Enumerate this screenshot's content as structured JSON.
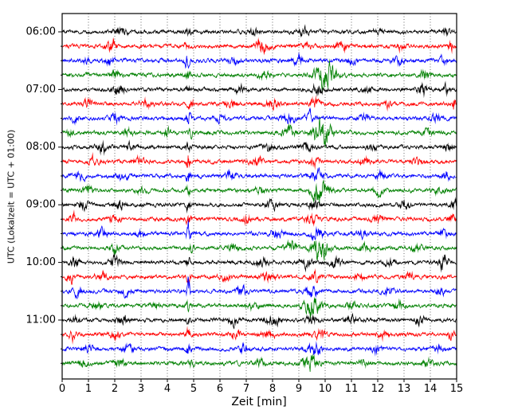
{
  "chart_data": {
    "type": "line",
    "subtype": "seismogram-helicorder",
    "title": "",
    "xlabel": "Zeit  [min]",
    "ylabel": "UTC (Lokalzeit = UTC + 01:00)",
    "x_range": [
      0,
      15
    ],
    "x_ticks": [
      0,
      1,
      2,
      3,
      4,
      5,
      6,
      7,
      8,
      9,
      10,
      11,
      12,
      13,
      14,
      15
    ],
    "minutes_per_row": 15,
    "y_hour_labels": [
      "06:00",
      "07:00",
      "08:00",
      "09:00",
      "10:00",
      "11:00"
    ],
    "trace_colors_cycle": [
      "#000000",
      "#ff0000",
      "#0000ff",
      "#008000"
    ],
    "grid": "vertical-dotted-per-minute",
    "rows": [
      {
        "time": "06:00",
        "color": "#000000",
        "seed": 11,
        "base_amp": 1.0,
        "events": [
          [
            2.2,
            2.0,
            0.25
          ],
          [
            4.8,
            1.8,
            0.12
          ],
          [
            7.3,
            1.2,
            0.2
          ],
          [
            9.2,
            1.8,
            0.2
          ],
          [
            12.0,
            1.0,
            0.2
          ],
          [
            14.6,
            1.5,
            0.15
          ]
        ]
      },
      {
        "time": "06:15",
        "color": "#ff0000",
        "seed": 12,
        "base_amp": 1.0,
        "events": [
          [
            1.9,
            3.0,
            0.2
          ],
          [
            4.7,
            1.5,
            0.1
          ],
          [
            7.6,
            2.8,
            0.25
          ],
          [
            9.3,
            1.5,
            0.2
          ],
          [
            10.6,
            2.5,
            0.2
          ],
          [
            12.9,
            1.8,
            0.15
          ],
          [
            14.8,
            2.2,
            0.12
          ]
        ]
      },
      {
        "time": "06:30",
        "color": "#0000ff",
        "seed": 13,
        "base_amp": 1.0,
        "events": [
          [
            0.9,
            1.5,
            0.15
          ],
          [
            1.8,
            2.0,
            0.2
          ],
          [
            4.75,
            3.5,
            0.08
          ],
          [
            6.5,
            1.8,
            0.2
          ],
          [
            9.0,
            2.0,
            0.25
          ],
          [
            11.0,
            1.2,
            0.2
          ],
          [
            12.8,
            1.8,
            0.2
          ],
          [
            14.5,
            1.5,
            0.15
          ]
        ]
      },
      {
        "time": "06:45",
        "color": "#008000",
        "seed": 14,
        "base_amp": 1.0,
        "events": [
          [
            2.0,
            1.8,
            0.2
          ],
          [
            4.8,
            2.0,
            0.1
          ],
          [
            7.7,
            1.8,
            0.2
          ],
          [
            9.9,
            6.5,
            0.3
          ],
          [
            10.3,
            3.0,
            0.2
          ],
          [
            13.8,
            1.8,
            0.2
          ]
        ]
      },
      {
        "time": "07:00",
        "color": "#000000",
        "seed": 15,
        "base_amp": 1.0,
        "events": [
          [
            2.15,
            3.5,
            0.18
          ],
          [
            4.8,
            2.0,
            0.1
          ],
          [
            6.8,
            1.8,
            0.2
          ],
          [
            9.7,
            2.5,
            0.2
          ],
          [
            11.6,
            1.5,
            0.2
          ],
          [
            13.7,
            2.8,
            0.2
          ],
          [
            14.6,
            2.0,
            0.15
          ]
        ]
      },
      {
        "time": "07:15",
        "color": "#ff0000",
        "seed": 16,
        "base_amp": 1.0,
        "events": [
          [
            1.0,
            2.0,
            0.2
          ],
          [
            3.2,
            1.8,
            0.2
          ],
          [
            4.9,
            3.0,
            0.1
          ],
          [
            6.4,
            1.5,
            0.2
          ],
          [
            8.0,
            2.0,
            0.25
          ],
          [
            9.6,
            2.0,
            0.2
          ],
          [
            12.4,
            1.5,
            0.2
          ],
          [
            14.9,
            2.6,
            0.1
          ]
        ]
      },
      {
        "time": "07:30",
        "color": "#0000ff",
        "seed": 17,
        "base_amp": 1.0,
        "events": [
          [
            0.5,
            1.8,
            0.15
          ],
          [
            2.0,
            1.8,
            0.2
          ],
          [
            4.8,
            4.0,
            0.08
          ],
          [
            6.0,
            1.5,
            0.2
          ],
          [
            8.6,
            2.0,
            0.25
          ],
          [
            9.4,
            2.2,
            0.2
          ],
          [
            11.5,
            1.5,
            0.2
          ],
          [
            14.2,
            1.8,
            0.2
          ]
        ]
      },
      {
        "time": "07:45",
        "color": "#008000",
        "seed": 18,
        "base_amp": 1.0,
        "events": [
          [
            0.3,
            1.5,
            0.15
          ],
          [
            2.5,
            1.5,
            0.2
          ],
          [
            4.0,
            1.8,
            0.15
          ],
          [
            4.9,
            2.2,
            0.1
          ],
          [
            8.6,
            2.5,
            0.25
          ],
          [
            9.9,
            7.0,
            0.35
          ],
          [
            13.9,
            1.8,
            0.2
          ]
        ]
      },
      {
        "time": "08:00",
        "color": "#000000",
        "seed": 19,
        "base_amp": 1.0,
        "events": [
          [
            1.5,
            3.0,
            0.2
          ],
          [
            2.6,
            2.0,
            0.2
          ],
          [
            4.8,
            2.0,
            0.1
          ],
          [
            7.8,
            1.8,
            0.25
          ],
          [
            9.3,
            2.0,
            0.2
          ],
          [
            11.8,
            1.5,
            0.2
          ],
          [
            14.7,
            2.8,
            0.15
          ]
        ]
      },
      {
        "time": "08:15",
        "color": "#ff0000",
        "seed": 20,
        "base_amp": 1.0,
        "events": [
          [
            1.2,
            2.0,
            0.2
          ],
          [
            2.9,
            1.5,
            0.2
          ],
          [
            4.8,
            5.0,
            0.07
          ],
          [
            7.4,
            1.5,
            0.25
          ],
          [
            9.6,
            2.0,
            0.2
          ],
          [
            11.5,
            1.8,
            0.2
          ],
          [
            13.5,
            1.5,
            0.2
          ]
        ]
      },
      {
        "time": "08:30",
        "color": "#0000ff",
        "seed": 21,
        "base_amp": 1.0,
        "events": [
          [
            0.7,
            1.5,
            0.2
          ],
          [
            2.3,
            2.0,
            0.2
          ],
          [
            4.8,
            5.5,
            0.07
          ],
          [
            6.4,
            1.8,
            0.2
          ],
          [
            9.7,
            2.8,
            0.25
          ],
          [
            12.1,
            1.8,
            0.2
          ],
          [
            14.6,
            2.5,
            0.15
          ]
        ]
      },
      {
        "time": "08:45",
        "color": "#008000",
        "seed": 22,
        "base_amp": 1.0,
        "events": [
          [
            1.0,
            1.8,
            0.2
          ],
          [
            3.0,
            1.3,
            0.2
          ],
          [
            4.8,
            2.0,
            0.1
          ],
          [
            7.5,
            1.5,
            0.2
          ],
          [
            9.8,
            6.5,
            0.3
          ],
          [
            12.0,
            1.8,
            0.2
          ],
          [
            14.3,
            2.0,
            0.2
          ]
        ]
      },
      {
        "time": "09:00",
        "color": "#000000",
        "seed": 23,
        "base_amp": 1.0,
        "events": [
          [
            0.8,
            1.8,
            0.2
          ],
          [
            2.2,
            2.0,
            0.2
          ],
          [
            4.8,
            2.2,
            0.1
          ],
          [
            8.0,
            1.8,
            0.25
          ],
          [
            9.6,
            2.5,
            0.2
          ],
          [
            13.0,
            1.8,
            0.2
          ],
          [
            14.9,
            2.5,
            0.12
          ]
        ]
      },
      {
        "time": "09:15",
        "color": "#ff0000",
        "seed": 24,
        "base_amp": 1.0,
        "events": [
          [
            0.4,
            2.8,
            0.12
          ],
          [
            2.0,
            1.8,
            0.2
          ],
          [
            4.8,
            3.2,
            0.08
          ],
          [
            7.0,
            1.8,
            0.2
          ],
          [
            9.5,
            2.0,
            0.25
          ],
          [
            12.0,
            1.8,
            0.2
          ],
          [
            14.8,
            2.0,
            0.12
          ]
        ]
      },
      {
        "time": "09:30",
        "color": "#0000ff",
        "seed": 25,
        "base_amp": 1.0,
        "events": [
          [
            1.5,
            1.8,
            0.2
          ],
          [
            3.0,
            1.5,
            0.2
          ],
          [
            4.8,
            6.0,
            0.07
          ],
          [
            8.2,
            1.8,
            0.25
          ],
          [
            9.7,
            2.8,
            0.25
          ],
          [
            11.4,
            1.8,
            0.2
          ],
          [
            14.5,
            2.0,
            0.15
          ]
        ]
      },
      {
        "time": "09:45",
        "color": "#008000",
        "seed": 26,
        "base_amp": 1.0,
        "events": [
          [
            2.0,
            1.8,
            0.2
          ],
          [
            4.9,
            2.0,
            0.1
          ],
          [
            6.5,
            1.5,
            0.2
          ],
          [
            8.7,
            3.0,
            0.2
          ],
          [
            9.8,
            6.0,
            0.3
          ],
          [
            11.5,
            1.5,
            0.2
          ],
          [
            13.5,
            1.8,
            0.2
          ]
        ]
      },
      {
        "time": "10:00",
        "color": "#000000",
        "seed": 27,
        "base_amp": 1.0,
        "events": [
          [
            0.5,
            2.5,
            0.15
          ],
          [
            2.0,
            2.8,
            0.2
          ],
          [
            4.8,
            2.0,
            0.1
          ],
          [
            7.6,
            1.8,
            0.25
          ],
          [
            9.3,
            2.5,
            0.2
          ],
          [
            10.4,
            2.8,
            0.2
          ],
          [
            12.5,
            1.8,
            0.2
          ],
          [
            14.5,
            3.5,
            0.2
          ]
        ]
      },
      {
        "time": "10:15",
        "color": "#ff0000",
        "seed": 28,
        "base_amp": 1.0,
        "events": [
          [
            0.3,
            2.8,
            0.12
          ],
          [
            1.5,
            1.8,
            0.2
          ],
          [
            4.8,
            3.0,
            0.08
          ],
          [
            6.2,
            1.5,
            0.2
          ],
          [
            7.8,
            2.0,
            0.25
          ],
          [
            9.6,
            2.0,
            0.2
          ],
          [
            11.3,
            1.5,
            0.2
          ],
          [
            13.2,
            1.8,
            0.2
          ]
        ]
      },
      {
        "time": "10:30",
        "color": "#0000ff",
        "seed": 29,
        "base_amp": 1.0,
        "events": [
          [
            0.6,
            1.8,
            0.2
          ],
          [
            2.4,
            1.8,
            0.2
          ],
          [
            4.8,
            5.5,
            0.07
          ],
          [
            6.8,
            2.5,
            0.2
          ],
          [
            9.5,
            2.8,
            0.25
          ],
          [
            12.4,
            1.8,
            0.2
          ],
          [
            14.4,
            2.0,
            0.15
          ]
        ]
      },
      {
        "time": "10:45",
        "color": "#008000",
        "seed": 30,
        "base_amp": 1.0,
        "events": [
          [
            1.3,
            1.8,
            0.2
          ],
          [
            3.5,
            1.3,
            0.2
          ],
          [
            4.8,
            2.0,
            0.1
          ],
          [
            7.2,
            1.8,
            0.2
          ],
          [
            9.5,
            5.5,
            0.3
          ],
          [
            11.0,
            1.5,
            0.2
          ],
          [
            12.8,
            1.8,
            0.2
          ]
        ]
      },
      {
        "time": "11:00",
        "color": "#000000",
        "seed": 31,
        "base_amp": 1.0,
        "events": [
          [
            0.5,
            1.8,
            0.15
          ],
          [
            2.3,
            2.8,
            0.2
          ],
          [
            4.8,
            2.0,
            0.1
          ],
          [
            6.5,
            1.8,
            0.2
          ],
          [
            8.0,
            2.5,
            0.25
          ],
          [
            9.5,
            2.0,
            0.2
          ],
          [
            11.0,
            1.8,
            0.2
          ],
          [
            13.6,
            1.8,
            0.2
          ]
        ]
      },
      {
        "time": "11:15",
        "color": "#ff0000",
        "seed": 32,
        "base_amp": 1.0,
        "events": [
          [
            0.4,
            2.8,
            0.12
          ],
          [
            2.0,
            1.8,
            0.2
          ],
          [
            4.8,
            3.0,
            0.08
          ],
          [
            6.6,
            1.5,
            0.2
          ],
          [
            7.8,
            1.8,
            0.25
          ],
          [
            9.8,
            2.0,
            0.2
          ],
          [
            12.2,
            1.8,
            0.2
          ],
          [
            14.8,
            2.0,
            0.12
          ]
        ]
      },
      {
        "time": "11:30",
        "color": "#0000ff",
        "seed": 33,
        "base_amp": 1.0,
        "events": [
          [
            1.0,
            1.8,
            0.2
          ],
          [
            2.5,
            1.8,
            0.2
          ],
          [
            4.8,
            3.5,
            0.08
          ],
          [
            6.9,
            1.8,
            0.2
          ],
          [
            9.6,
            2.8,
            0.25
          ],
          [
            11.9,
            1.8,
            0.2
          ],
          [
            14.3,
            1.8,
            0.15
          ]
        ]
      },
      {
        "time": "11:45",
        "color": "#008000",
        "seed": 34,
        "base_amp": 1.0,
        "events": [
          [
            0.8,
            1.5,
            0.2
          ],
          [
            2.2,
            1.6,
            0.2
          ],
          [
            4.9,
            1.8,
            0.1
          ],
          [
            7.5,
            1.6,
            0.2
          ],
          [
            9.4,
            3.5,
            0.3
          ],
          [
            11.5,
            1.3,
            0.2
          ],
          [
            13.9,
            1.6,
            0.2
          ]
        ]
      }
    ]
  }
}
